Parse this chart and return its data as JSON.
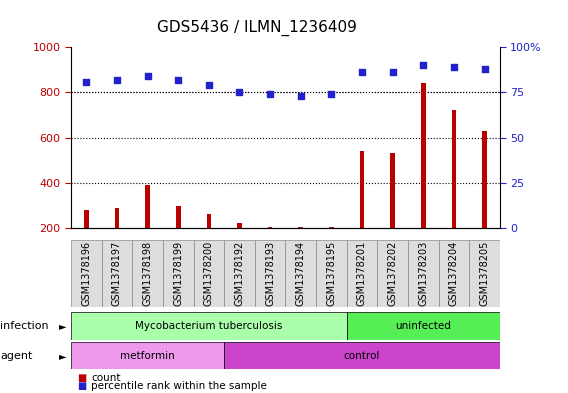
{
  "title": "GDS5436 / ILMN_1236409",
  "samples": [
    "GSM1378196",
    "GSM1378197",
    "GSM1378198",
    "GSM1378199",
    "GSM1378200",
    "GSM1378192",
    "GSM1378193",
    "GSM1378194",
    "GSM1378195",
    "GSM1378201",
    "GSM1378202",
    "GSM1378203",
    "GSM1378204",
    "GSM1378205"
  ],
  "counts": [
    280,
    290,
    390,
    295,
    260,
    220,
    205,
    205,
    205,
    540,
    530,
    840,
    720,
    630
  ],
  "percentiles": [
    81,
    82,
    84,
    82,
    79,
    75,
    74,
    73,
    74,
    86,
    86,
    90,
    89,
    88
  ],
  "infection_groups": [
    {
      "label": "Mycobacterium tuberculosis",
      "start": 0,
      "end": 9,
      "color": "#aaffaa"
    },
    {
      "label": "uninfected",
      "start": 9,
      "end": 14,
      "color": "#55ee55"
    }
  ],
  "agent_groups": [
    {
      "label": "metformin",
      "start": 0,
      "end": 5,
      "color": "#ee99ee"
    },
    {
      "label": "control",
      "start": 5,
      "end": 14,
      "color": "#cc44cc"
    }
  ],
  "bar_color": "#bb0000",
  "dot_color": "#2222cc",
  "ylim_left": [
    200,
    1000
  ],
  "ylim_right": [
    0,
    100
  ],
  "yticks_left": [
    200,
    400,
    600,
    800,
    1000
  ],
  "yticks_right": [
    0,
    25,
    50,
    75,
    100
  ],
  "grid_values": [
    400,
    600,
    800
  ],
  "bg_color": "#ffffff",
  "title_fontsize": 11,
  "tick_label_fontsize": 7
}
